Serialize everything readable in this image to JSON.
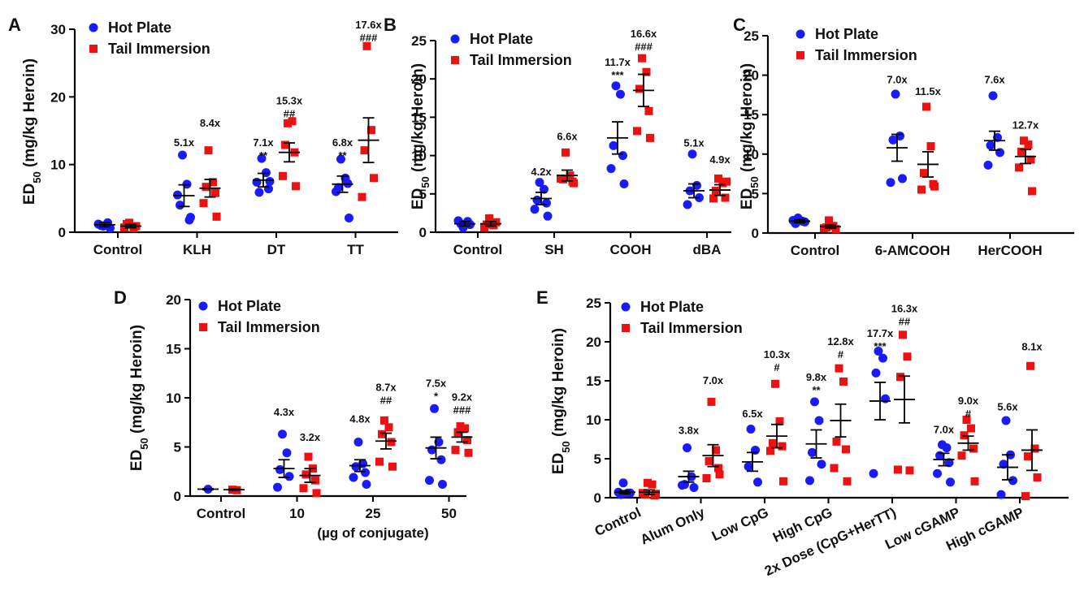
{
  "colors": {
    "hot_plate": "#1a1aff",
    "tail_immersion": "#ee1111",
    "axis": "#000000"
  },
  "chart_data": [
    {
      "panel": "A",
      "type": "scatter",
      "ylabel": "ED50 (mg/kg Heroin)",
      "ylim": [
        0,
        30
      ],
      "yticks": [
        0,
        10,
        20,
        30
      ],
      "legend": [
        "Hot Plate",
        "Tail Immersion"
      ],
      "legend_position": "top-left",
      "categories": [
        "Control",
        "KLH",
        "DT",
        "TT"
      ],
      "series": [
        {
          "name": "Hot Plate",
          "marker": "circle",
          "mean": [
            1.1,
            5.4,
            7.7,
            7.1
          ],
          "sem": [
            0.3,
            1.6,
            1.0,
            1.2
          ],
          "points": [
            [
              0.9,
              1.4,
              1.0,
              0.6,
              1.2
            ],
            [
              11.4,
              7.1,
              4.0,
              1.8,
              5.5,
              2.2
            ],
            [
              10.9,
              8.8,
              5.9,
              6.4,
              7.4,
              7.5
            ],
            [
              10.8,
              8.0,
              6.6,
              7.2,
              6.0,
              2.1
            ]
          ]
        },
        {
          "name": "Tail Immersion",
          "marker": "square",
          "mean": [
            0.9,
            6.5,
            11.8,
            13.6
          ],
          "sem": [
            0.25,
            1.3,
            1.4,
            3.3
          ],
          "points": [
            [
              1.4,
              0.6,
              1.2,
              0.9,
              0.7
            ],
            [
              12.1,
              7.4,
              6.7,
              5.8,
              4.3,
              2.3
            ],
            [
              16.1,
              16.4,
              12.9,
              11.8,
              8.3,
              6.8
            ],
            [
              27.5,
              15.1,
              12.1,
              8.0,
              5.2
            ]
          ]
        }
      ],
      "annotations": [
        {
          "cat": 1,
          "series": 0,
          "y": 12.7,
          "lines": [
            "5.1x"
          ]
        },
        {
          "cat": 1,
          "series": 1,
          "y": 15.6,
          "lines": [
            "8.4x"
          ]
        },
        {
          "cat": 2,
          "series": 0,
          "y": 12.7,
          "lines": [
            "7.1x",
            "**"
          ]
        },
        {
          "cat": 2,
          "series": 1,
          "y": 18.9,
          "lines": [
            "15.3x",
            "##"
          ]
        },
        {
          "cat": 3,
          "series": 0,
          "y": 12.7,
          "lines": [
            "6.8x",
            "**"
          ]
        },
        {
          "cat": 3,
          "series": 1,
          "y": 30.1,
          "lines": [
            "17.6x",
            "###"
          ]
        }
      ]
    },
    {
      "panel": "B",
      "type": "scatter",
      "ylabel": "ED50 (mg/kg Heroin)",
      "ylim": [
        0,
        25
      ],
      "yticks": [
        0,
        5,
        10,
        15,
        20,
        25
      ],
      "legend": [
        "Hot Plate",
        "Tail Immersion"
      ],
      "legend_position": "top-left",
      "categories": [
        "Control",
        "SH",
        "COOH",
        "dBA"
      ],
      "series": [
        {
          "name": "Hot Plate",
          "marker": "circle",
          "mean": [
            1.1,
            4.4,
            12.3,
            5.4
          ],
          "sem": [
            0.3,
            0.8,
            2.1,
            0.9
          ],
          "points": [
            [
              0.6,
              1.4,
              1.1,
              1.0,
              1.5
            ],
            [
              6.5,
              5.6,
              4.2,
              3.8,
              3.0,
              2.1
            ],
            [
              19.1,
              18.0,
              11.3,
              10.0,
              8.3,
              6.3
            ],
            [
              10.2,
              6.1,
              5.4,
              4.5,
              3.6
            ]
          ]
        },
        {
          "name": "Tail Immersion",
          "marker": "square",
          "mean": [
            1.1,
            7.4,
            18.5,
            5.5
          ],
          "sem": [
            0.3,
            0.7,
            2.1,
            0.7
          ],
          "points": [
            [
              1.8,
              0.9,
              1.0,
              1.3,
              0.6
            ],
            [
              10.4,
              7.4,
              6.9,
              6.6,
              7.0,
              6.4
            ],
            [
              22.7,
              20.9,
              18.7,
              15.8,
              13.2,
              12.3
            ],
            [
              7.0,
              6.4,
              5.4,
              4.5,
              4.4,
              6.6
            ]
          ]
        }
      ],
      "annotations": [
        {
          "cat": 1,
          "series": 0,
          "y": 7.4,
          "lines": [
            "4.2x"
          ]
        },
        {
          "cat": 1,
          "series": 1,
          "y": 12.0,
          "lines": [
            "6.6x"
          ]
        },
        {
          "cat": 2,
          "series": 0,
          "y": 21.7,
          "lines": [
            "11.7x",
            "***"
          ]
        },
        {
          "cat": 2,
          "series": 1,
          "y": 25.4,
          "lines": [
            "16.6x",
            "###"
          ]
        },
        {
          "cat": 3,
          "series": 0,
          "y": 11.2,
          "lines": [
            "5.1x"
          ]
        },
        {
          "cat": 3,
          "series": 1,
          "y": 9.0,
          "lines": [
            "4.9x"
          ]
        }
      ]
    },
    {
      "panel": "C",
      "type": "scatter",
      "ylabel": "ED50 (mg/kg Heroin)",
      "ylim": [
        0,
        25
      ],
      "yticks": [
        0,
        5,
        10,
        15,
        20,
        25
      ],
      "legend": [
        "Hot Plate",
        "Tail Immersion"
      ],
      "legend_position": "top-left",
      "categories": [
        "Control",
        "6-AMCOOH",
        "HerCOOH"
      ],
      "series": [
        {
          "name": "Hot Plate",
          "marker": "circle",
          "mean": [
            1.5,
            10.8,
            11.7
          ],
          "sem": [
            0.2,
            1.7,
            1.2
          ],
          "points": [
            [
              1.9,
              1.5,
              1.2,
              1.4,
              1.6
            ],
            [
              17.6,
              12.3,
              11.8,
              6.9,
              6.4
            ],
            [
              17.4,
              12.1,
              11.1,
              10.2,
              8.6
            ]
          ]
        },
        {
          "name": "Tail Immersion",
          "marker": "square",
          "mean": [
            0.8,
            8.7,
            9.7
          ],
          "sem": [
            0.2,
            1.6,
            0.9
          ],
          "points": [
            [
              1.6,
              0.9,
              0.7,
              0.5,
              0.6
            ],
            [
              16.0,
              11.0,
              7.6,
              6.2,
              5.5,
              5.9
            ],
            [
              11.7,
              11.2,
              10.3,
              9.3,
              8.3,
              5.3
            ]
          ]
        }
      ],
      "annotations": [
        {
          "cat": 1,
          "series": 0,
          "y": 19.0,
          "lines": [
            "7.0x"
          ]
        },
        {
          "cat": 1,
          "series": 1,
          "y": 17.5,
          "lines": [
            "11.5x"
          ]
        },
        {
          "cat": 2,
          "series": 0,
          "y": 19.0,
          "lines": [
            "7.6x"
          ]
        },
        {
          "cat": 2,
          "series": 1,
          "y": 13.2,
          "lines": [
            "12.7x"
          ]
        }
      ]
    },
    {
      "panel": "D",
      "type": "scatter",
      "ylabel": "ED50 (mg/kg Heroin)",
      "xlabel": "(µg of conjugate)",
      "ylim": [
        0,
        20
      ],
      "yticks": [
        0,
        5,
        10,
        15,
        20
      ],
      "legend": [
        "Hot Plate",
        "Tail Immersion"
      ],
      "legend_position": "top-left",
      "categories": [
        "Control",
        "10",
        "25",
        "50"
      ],
      "series": [
        {
          "name": "Hot Plate",
          "marker": "circle",
          "mean": [
            0.7,
            2.8,
            3.1,
            4.9
          ],
          "sem": [
            0.05,
            0.9,
            0.6,
            1.1
          ],
          "points": [
            [
              0.7
            ],
            [
              6.3,
              4.4,
              2.7,
              2.0,
              0.9
            ],
            [
              5.5,
              3.3,
              3.0,
              2.4,
              1.9,
              1.2
            ],
            [
              8.9,
              5.5,
              4.7,
              3.7,
              1.6,
              1.2
            ]
          ]
        },
        {
          "name": "Tail Immersion",
          "marker": "square",
          "mean": [
            0.65,
            2.1,
            5.6,
            6.0
          ],
          "sem": [
            0.05,
            0.7,
            0.8,
            0.5
          ],
          "points": [
            [
              0.65,
              0.6
            ],
            [
              4.0,
              2.8,
              2.2,
              1.6,
              0.8,
              0.3
            ],
            [
              7.7,
              7.0,
              6.3,
              5.5,
              3.5,
              3.0
            ],
            [
              7.1,
              6.9,
              6.5,
              5.7,
              4.7,
              4.4
            ]
          ]
        }
      ],
      "annotations": [
        {
          "cat": 1,
          "series": 0,
          "y": 8.2,
          "lines": [
            "4.3x"
          ]
        },
        {
          "cat": 1,
          "series": 1,
          "y": 5.6,
          "lines": [
            "3.2x"
          ]
        },
        {
          "cat": 2,
          "series": 0,
          "y": 7.5,
          "lines": [
            "4.8x"
          ]
        },
        {
          "cat": 2,
          "series": 1,
          "y": 10.7,
          "lines": [
            "8.7x",
            "##"
          ]
        },
        {
          "cat": 3,
          "series": 0,
          "y": 11.1,
          "lines": [
            "7.5x",
            "*"
          ]
        },
        {
          "cat": 3,
          "series": 1,
          "y": 9.7,
          "lines": [
            "9.2x",
            "###"
          ]
        }
      ]
    },
    {
      "panel": "E",
      "type": "scatter",
      "ylabel": "ED50 (mg/kg Heroin)",
      "ylim": [
        0,
        25
      ],
      "yticks": [
        0,
        5,
        10,
        15,
        20,
        25
      ],
      "legend": [
        "Hot Plate",
        "Tail Immersion"
      ],
      "legend_position": "top-left",
      "categories": [
        "Control",
        "Alum Only",
        "Low CpG",
        "High CpG",
        "2x Dose (CpG+HerTT)",
        "Low cGAMP",
        "High cGAMP"
      ],
      "series": [
        {
          "name": "Hot Plate",
          "marker": "circle",
          "mean": [
            0.7,
            2.7,
            4.6,
            6.9,
            12.4,
            4.9,
            3.9
          ],
          "sem": [
            0.2,
            0.7,
            1.2,
            1.8,
            2.4,
            0.8,
            1.6
          ],
          "points": [
            [
              1.9,
              0.6,
              0.4,
              0.6,
              0.7
            ],
            [
              6.4,
              2.7,
              1.7,
              1.3,
              1.6
            ],
            [
              8.8,
              6.1,
              4.0,
              2.0
            ],
            [
              12.3,
              9.9,
              5.8,
              4.3,
              2.2
            ],
            [
              18.8,
              17.9,
              16.0,
              12.7,
              3.1
            ],
            [
              6.8,
              6.4,
              5.4,
              4.5,
              3.1,
              2.0
            ],
            [
              9.9,
              5.5,
              4.3,
              2.2,
              0.4
            ]
          ]
        },
        {
          "name": "Tail Immersion",
          "marker": "square",
          "mean": [
            0.7,
            5.4,
            7.9,
            9.9,
            12.6,
            7.0,
            6.1
          ],
          "sem": [
            0.3,
            1.4,
            1.5,
            2.1,
            3.0,
            0.9,
            2.6
          ],
          "points": [
            [
              1.9,
              1.7,
              0.4,
              0.3,
              0.6,
              0.5
            ],
            [
              12.3,
              6.1,
              4.7,
              3.8,
              2.5,
              3.0
            ],
            [
              14.6,
              9.8,
              7.0,
              6.6,
              6.0,
              2.1
            ],
            [
              16.6,
              14.9,
              7.2,
              6.2,
              3.8,
              2.1
            ],
            [
              20.9,
              18.1,
              15.5,
              3.5,
              3.6
            ],
            [
              10.0,
              8.9,
              8.0,
              6.3,
              5.4,
              2.1
            ],
            [
              16.9,
              6.3,
              5.3,
              2.6,
              0.2
            ]
          ]
        }
      ],
      "annotations": [
        {
          "cat": 1,
          "series": 0,
          "y": 8.2,
          "lines": [
            "3.8x"
          ]
        },
        {
          "cat": 1,
          "series": 1,
          "y": 14.6,
          "lines": [
            "7.0x"
          ]
        },
        {
          "cat": 2,
          "series": 0,
          "y": 10.3,
          "lines": [
            "6.5x"
          ]
        },
        {
          "cat": 2,
          "series": 1,
          "y": 17.9,
          "lines": [
            "10.3x",
            "#"
          ]
        },
        {
          "cat": 3,
          "series": 0,
          "y": 15.0,
          "lines": [
            "9.8x",
            "**"
          ]
        },
        {
          "cat": 3,
          "series": 1,
          "y": 19.6,
          "lines": [
            "12.8x",
            "#"
          ]
        },
        {
          "cat": 4,
          "series": 0,
          "y": 20.6,
          "lines": [
            "17.7x",
            "***"
          ]
        },
        {
          "cat": 4,
          "series": 1,
          "y": 23.8,
          "lines": [
            "16.3x",
            "##"
          ]
        },
        {
          "cat": 5,
          "series": 0,
          "y": 8.3,
          "lines": [
            "7.0x"
          ]
        },
        {
          "cat": 5,
          "series": 1,
          "y": 12.0,
          "lines": [
            "9.0x",
            "#"
          ]
        },
        {
          "cat": 6,
          "series": 0,
          "y": 11.2,
          "lines": [
            "5.6x"
          ]
        },
        {
          "cat": 6,
          "series": 1,
          "y": 18.9,
          "lines": [
            "8.1x"
          ]
        }
      ]
    }
  ]
}
